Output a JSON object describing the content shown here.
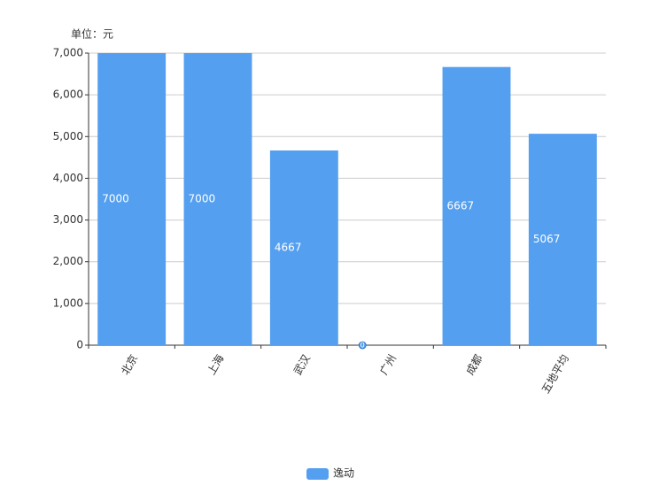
{
  "chart_data": {
    "type": "bar",
    "y_label": "单位：元",
    "categories": [
      "北京",
      "上海",
      "武汉",
      "广州",
      "成都",
      "五地平均"
    ],
    "series": [
      {
        "name": "逸动",
        "color": "#549ff0",
        "values": [
          7000,
          7000,
          4667,
          0,
          6667,
          5067
        ]
      }
    ],
    "ylim": [
      0,
      7000
    ],
    "yticks": [
      0,
      {
        "value": 1000,
        "label": "1,000"
      },
      {
        "value": 2000,
        "label": "2,000"
      },
      {
        "value": 3000,
        "label": "3,000"
      },
      {
        "value": 4000,
        "label": "4,000"
      },
      {
        "value": 5000,
        "label": "5,000"
      },
      {
        "value": 6000,
        "label": "6,000"
      },
      {
        "value": 7000,
        "label": "7,000"
      }
    ],
    "grid": true,
    "legend": "bottom",
    "data_labels": true
  }
}
